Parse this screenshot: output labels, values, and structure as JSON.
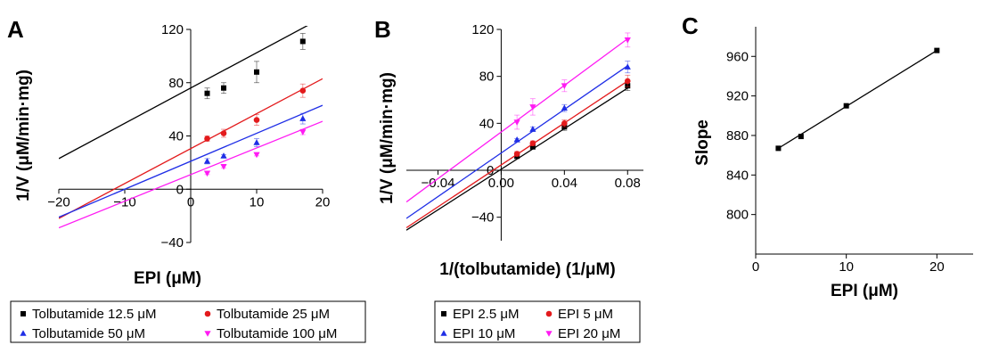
{
  "chart_data": [
    {
      "panel": "A",
      "type": "line",
      "xlabel": "EPI (μM)",
      "ylabel": "1/V (μM/min·mg)",
      "xlim": [
        -20,
        20
      ],
      "ylim": [
        -40,
        120
      ],
      "x_ticks": [
        "−20",
        "−10",
        "0",
        "10",
        "20"
      ],
      "y_ticks": [
        "−40",
        "0",
        "40",
        "80",
        "120"
      ],
      "x": [
        2.5,
        5,
        10,
        17
      ],
      "series": [
        {
          "name": "Tolbutamide 12.5 μM",
          "color": "#000000",
          "marker": "square",
          "values": [
            72,
            76,
            88,
            111
          ],
          "errors": [
            4,
            4,
            8,
            6
          ],
          "fit": {
            "x": [
              -20,
              20
            ],
            "y": [
              23,
              129
            ]
          }
        },
        {
          "name": "Tolbutamide 25 μM",
          "color": "#e31a1c",
          "marker": "circle",
          "values": [
            38,
            42,
            52,
            74
          ],
          "errors": [
            2,
            3,
            4,
            5
          ],
          "fit": {
            "x": [
              -20,
              20
            ],
            "y": [
              -22,
              83
            ]
          }
        },
        {
          "name": "Tolbutamide 50 μM",
          "color": "#1f2ee6",
          "marker": "triangle-up",
          "values": [
            21,
            25,
            35,
            53
          ],
          "errors": [
            2,
            1,
            3,
            4
          ],
          "fit": {
            "x": [
              -20,
              20
            ],
            "y": [
              -21,
              63
            ]
          }
        },
        {
          "name": "Tolbutamide 100 μM",
          "color": "#ff1bf3",
          "marker": "triangle-down",
          "values": [
            12,
            17,
            26,
            43
          ],
          "errors": [
            1,
            1,
            1,
            2
          ],
          "fit": {
            "x": [
              -20,
              20
            ],
            "y": [
              -29,
              51
            ]
          }
        }
      ]
    },
    {
      "panel": "B",
      "type": "line",
      "xlabel": "1/(tolbutamide) (1/μM)",
      "ylabel": "1/V (μM/min·mg)",
      "xlim": [
        -0.06,
        0.09
      ],
      "ylim": [
        -60,
        120
      ],
      "x_ticks": [
        "−0.04",
        "0.00",
        "0.04",
        "0.08"
      ],
      "y_ticks": [
        "−40",
        "0",
        "40",
        "80",
        "120"
      ],
      "x": [
        0.01,
        0.02,
        0.04,
        0.08
      ],
      "series": [
        {
          "name": "EPI 2.5 μM",
          "color": "#000000",
          "marker": "square",
          "values": [
            12,
            20,
            37,
            72
          ],
          "errors": [
            2,
            2,
            3,
            4
          ],
          "fit": {
            "x": [
              -0.06,
              0.08
            ],
            "y": [
              -51,
              70
            ]
          }
        },
        {
          "name": "EPI 5 μM",
          "color": "#e31a1c",
          "marker": "circle",
          "values": [
            14,
            23,
            40,
            76
          ],
          "errors": [
            2,
            2,
            3,
            5
          ],
          "fit": {
            "x": [
              -0.06,
              0.08
            ],
            "y": [
              -49,
              76
            ]
          }
        },
        {
          "name": "EPI 10 μM",
          "color": "#1f2ee6",
          "marker": "triangle-up",
          "values": [
            26,
            35,
            53,
            88
          ],
          "errors": [
            1,
            2,
            3,
            5
          ],
          "fit": {
            "x": [
              -0.06,
              0.08
            ],
            "y": [
              -41,
              89
            ]
          }
        },
        {
          "name": "EPI 20 μM",
          "color": "#ff1bf3",
          "marker": "triangle-down",
          "values": [
            41,
            54,
            72,
            111
          ],
          "errors": [
            6,
            7,
            5,
            6
          ],
          "fit": {
            "x": [
              -0.06,
              0.08
            ],
            "y": [
              -27,
              112
            ]
          }
        }
      ]
    },
    {
      "panel": "C",
      "type": "line",
      "xlabel": "EPI (μM)",
      "ylabel": "Slope",
      "xlim": [
        0,
        24
      ],
      "ylim": [
        760,
        990
      ],
      "x_ticks": [
        "0",
        "10",
        "20"
      ],
      "y_ticks": [
        "800",
        "840",
        "880",
        "920",
        "960"
      ],
      "x": [
        2.5,
        5,
        10,
        20
      ],
      "series": [
        {
          "name": "",
          "color": "#000000",
          "marker": "square",
          "values": [
            867,
            879,
            910,
            966
          ],
          "fit": {
            "x": [
              2.5,
              20
            ],
            "y": [
              867,
              966
            ]
          }
        }
      ]
    }
  ],
  "legend_a": {
    "items": [
      "Tolbutamide 12.5 μM",
      "Tolbutamide 25 μM",
      "Tolbutamide 50 μM",
      "Tolbutamide 100 μM"
    ]
  },
  "legend_b": {
    "items": [
      "EPI 2.5 μM",
      "EPI 5 μM",
      "EPI 10 μM",
      "EPI 20 μM"
    ]
  }
}
